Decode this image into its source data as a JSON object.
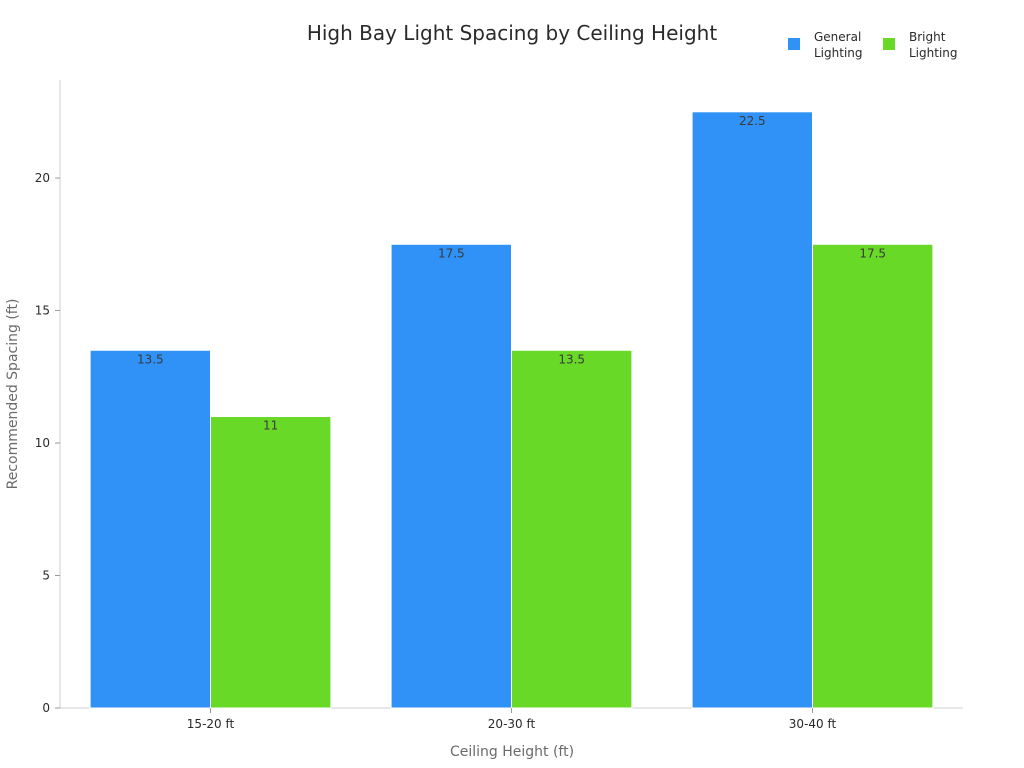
{
  "chart_data": {
    "type": "bar",
    "title": "High Bay Light Spacing by Ceiling Height",
    "xlabel": "Ceiling Height (ft)",
    "ylabel": "Recommended Spacing (ft)",
    "categories": [
      "15-20 ft",
      "20-30 ft",
      "30-40 ft"
    ],
    "series": [
      {
        "name": "General Lighting",
        "legend_lines": [
          "General",
          "Lighting"
        ],
        "color": "#3091f7",
        "values": [
          13.5,
          17.5,
          22.5
        ],
        "labels": [
          "13.5",
          "17.5",
          "22.5"
        ]
      },
      {
        "name": "Bright Lighting",
        "legend_lines": [
          "Bright",
          "Lighting"
        ],
        "color": "#68d927",
        "values": [
          11,
          13.5,
          17.5
        ],
        "labels": [
          "11",
          "13.5",
          "17.5"
        ]
      }
    ],
    "ylim": [
      0,
      23.7
    ],
    "yticks": [
      0,
      5,
      10,
      15,
      20
    ],
    "grid": false,
    "legend": "top-right"
  }
}
